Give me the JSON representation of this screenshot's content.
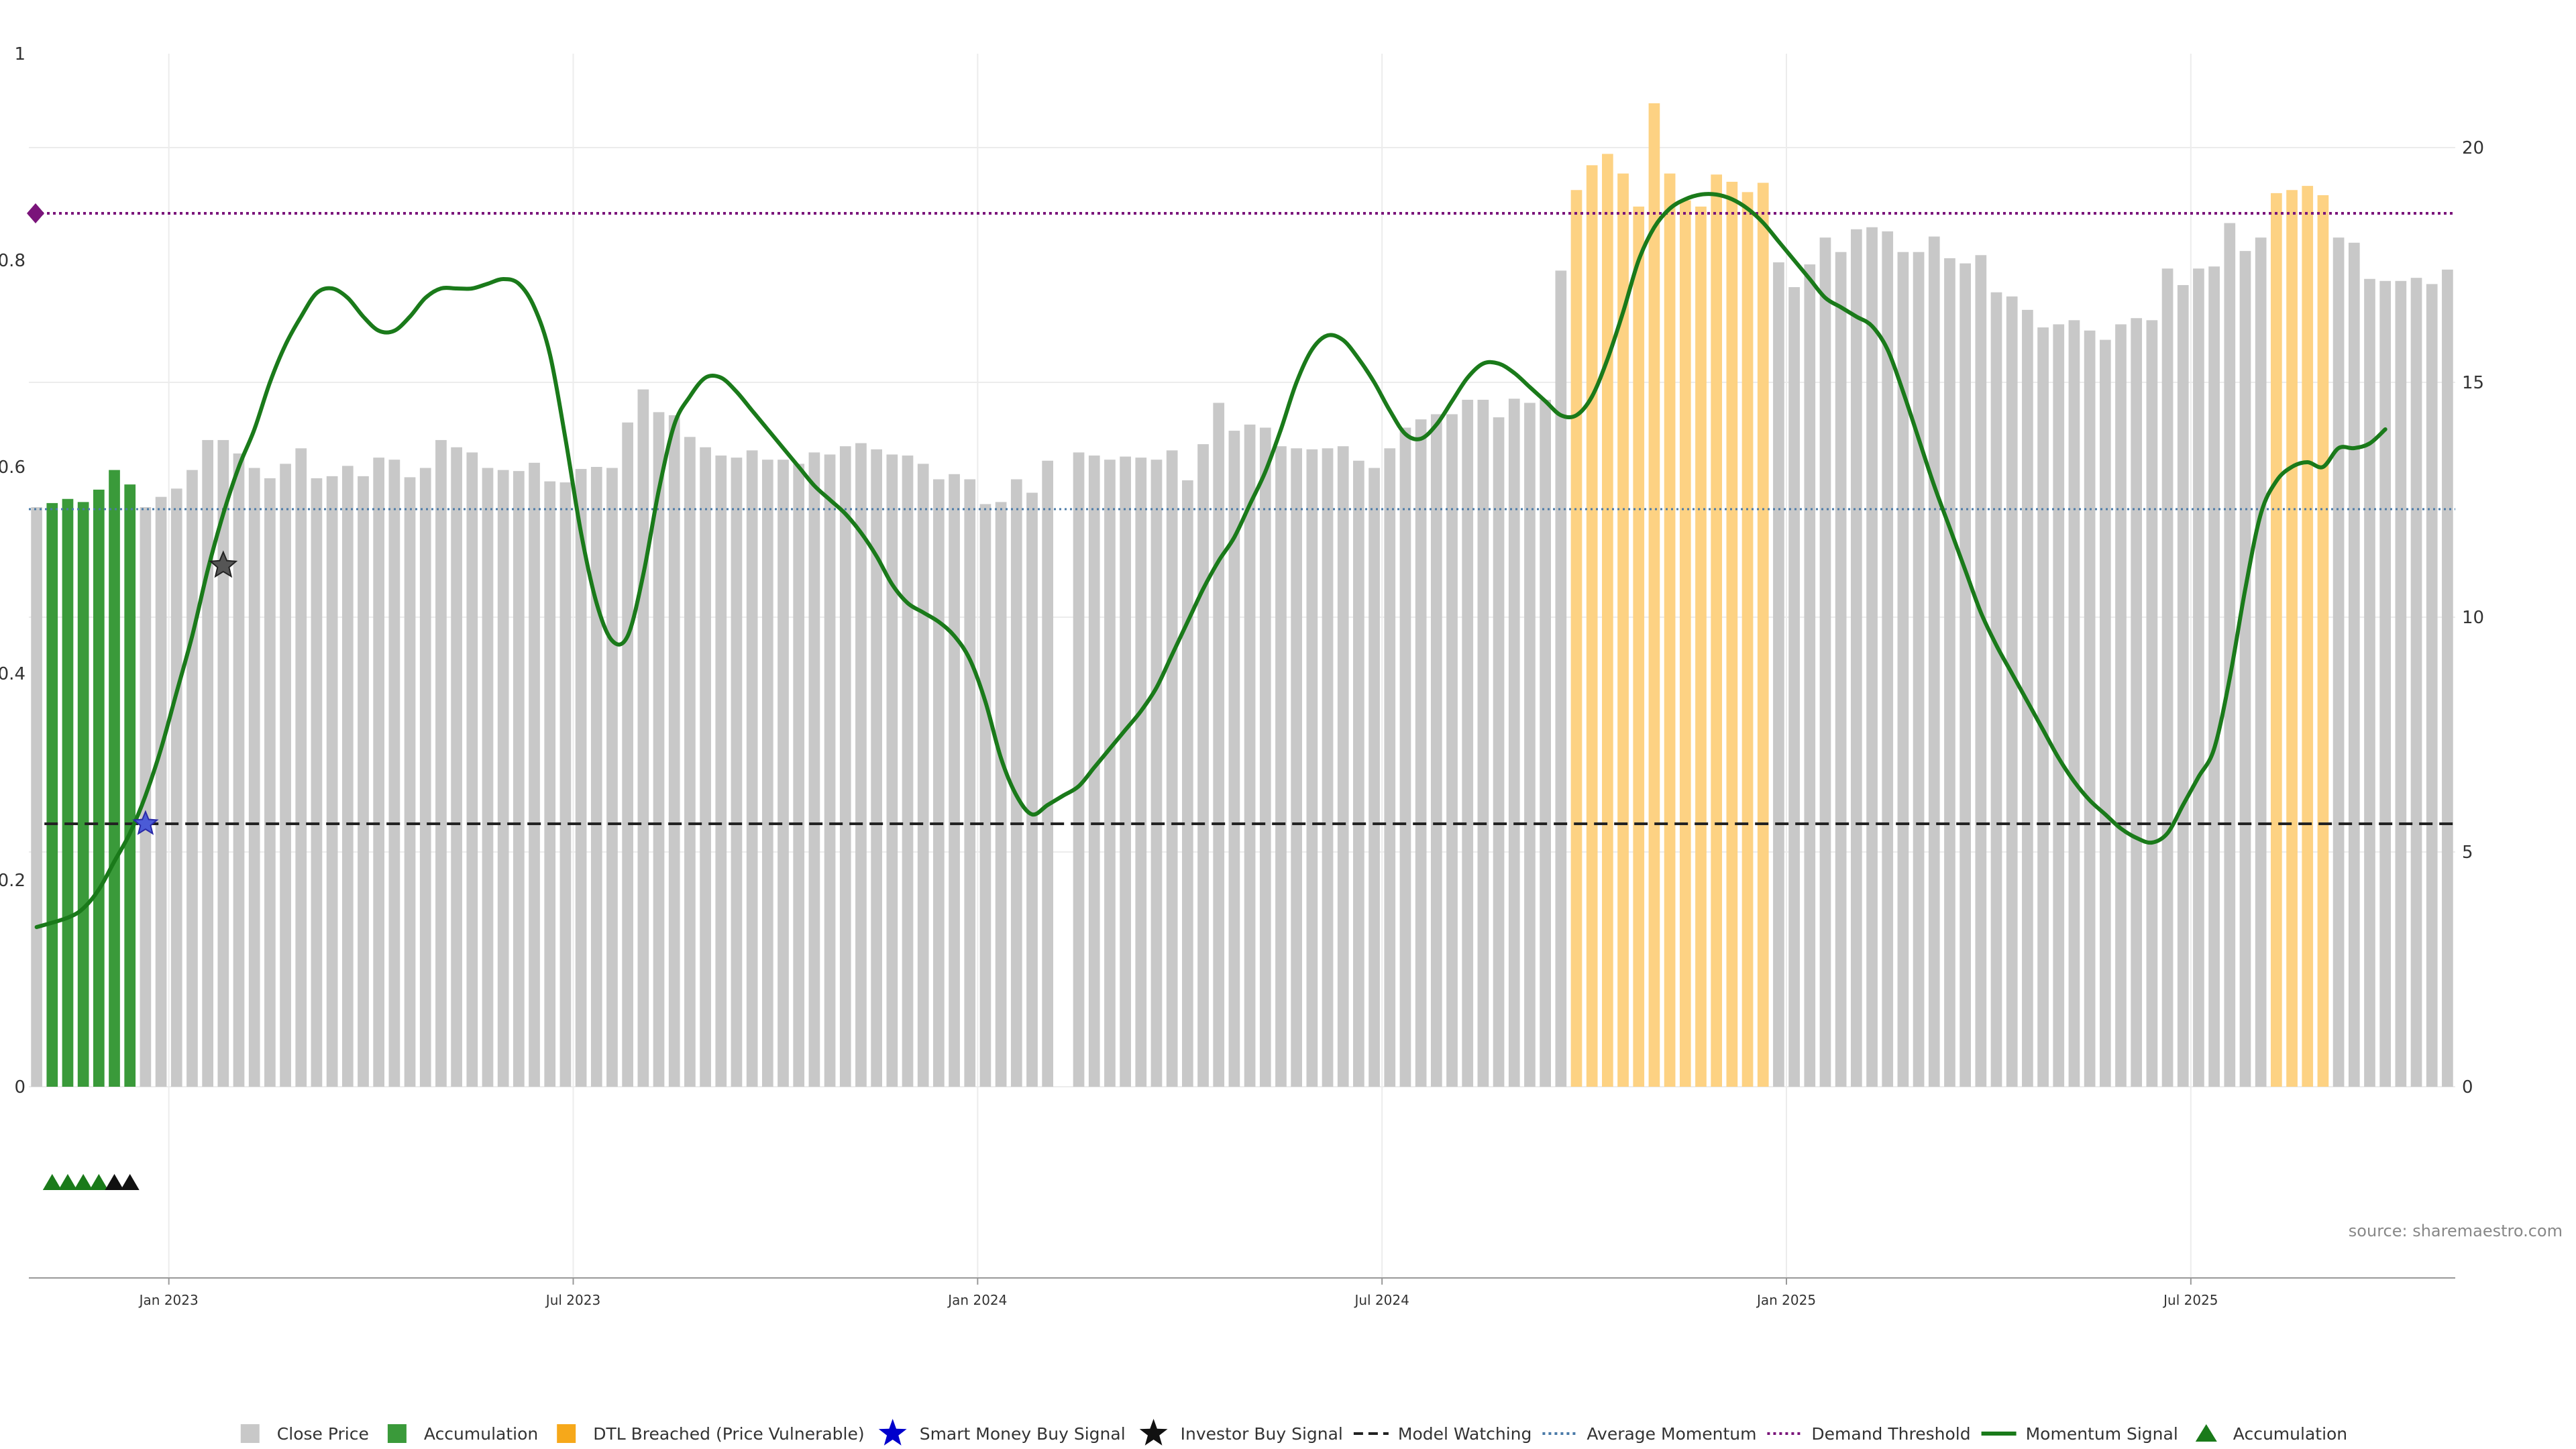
{
  "chart_data": {
    "type": "bar",
    "title": "",
    "source": "source: sharemaestro.com",
    "left_axis": {
      "ticks": [
        "0",
        "0.2",
        "0.4",
        "0.6",
        "0.8",
        "1"
      ],
      "ylim": [
        0,
        1
      ]
    },
    "right_axis": {
      "ticks": [
        "0",
        "5",
        "10",
        "15",
        "20"
      ],
      "ylim": [
        0,
        22
      ]
    },
    "x_axis": {
      "tick_labels": [
        "Jan 2023",
        "Jul 2023",
        "Jan 2024",
        "Jul 2024",
        "Jan 2025",
        "Jul 2025"
      ],
      "tick_weeks": [
        9,
        35,
        61,
        87,
        113,
        139
      ]
    },
    "week_range": [
      0,
      156
    ],
    "bars": {
      "unit_axis": "left",
      "values": [
        0.561,
        0.565,
        0.569,
        0.566,
        0.578,
        0.597,
        0.583,
        0.561,
        0.571,
        0.579,
        0.597,
        0.626,
        0.626,
        0.613,
        0.599,
        0.589,
        0.603,
        0.618,
        0.589,
        0.591,
        0.601,
        0.591,
        0.609,
        0.607,
        0.59,
        0.599,
        0.626,
        0.619,
        0.614,
        0.599,
        0.597,
        0.596,
        0.604,
        0.586,
        0.585,
        0.598,
        0.6,
        0.599,
        0.643,
        0.675,
        0.653,
        0.65,
        0.629,
        0.619,
        0.611,
        0.609,
        0.616,
        0.607,
        0.607,
        0.603,
        0.614,
        0.612,
        0.62,
        0.623,
        0.617,
        0.612,
        0.611,
        0.603,
        0.588,
        0.593,
        0.588,
        0.564,
        0.566,
        0.588,
        0.575,
        0.606,
        null,
        0.614,
        0.611,
        0.607,
        0.61,
        0.609,
        0.607,
        0.616,
        0.587,
        0.622,
        0.662,
        0.635,
        0.641,
        0.638,
        0.62,
        0.618,
        0.617,
        0.618,
        0.62,
        0.606,
        0.599,
        0.618,
        0.638,
        0.646,
        0.651,
        0.651,
        0.665,
        0.665,
        0.648,
        0.666,
        0.662,
        0.665,
        0.79,
        0.868,
        0.892,
        0.903,
        0.884,
        0.852,
        0.952,
        0.884,
        0.858,
        0.852,
        0.883,
        0.876,
        0.866,
        0.875,
        0.798,
        0.774,
        0.796,
        0.822,
        0.808,
        0.83,
        0.832,
        0.828,
        0.808,
        0.808,
        0.823,
        0.802,
        0.797,
        0.805,
        0.769,
        0.765,
        0.752,
        0.735,
        0.738,
        0.742,
        0.732,
        0.723,
        0.738,
        0.744,
        0.742,
        0.792,
        0.776,
        0.792,
        0.794,
        0.836,
        0.809,
        0.822,
        0.865,
        0.868,
        0.872,
        0.863,
        0.822,
        0.817,
        0.782,
        0.78,
        0.78,
        0.783,
        0.777,
        0.791
      ],
      "colors": {
        "gray": "#c8c8c8",
        "green": "#3a9a3a",
        "orange": "#fdd283"
      },
      "green_weeks": [
        1,
        6
      ],
      "orange_ranges": [
        [
          99,
          111
        ],
        [
          144,
          147
        ]
      ]
    },
    "momentum_signal": {
      "unit_axis": "right",
      "color": "#1a7a1a",
      "points": [
        [
          0,
          3.4
        ],
        [
          2,
          3.6
        ],
        [
          3,
          3.8
        ],
        [
          4,
          4.2
        ],
        [
          5,
          4.8
        ],
        [
          6,
          5.4
        ],
        [
          7,
          6.2
        ],
        [
          8,
          7.2
        ],
        [
          9,
          8.4
        ],
        [
          10,
          9.6
        ],
        [
          11,
          11.0
        ],
        [
          12,
          12.2
        ],
        [
          13,
          13.2
        ],
        [
          14,
          14.0
        ],
        [
          15,
          15.0
        ],
        [
          16,
          15.8
        ],
        [
          17,
          16.4
        ],
        [
          18,
          16.9
        ],
        [
          19,
          17.0
        ],
        [
          20,
          16.8
        ],
        [
          21,
          16.4
        ],
        [
          22,
          16.1
        ],
        [
          23,
          16.1
        ],
        [
          24,
          16.4
        ],
        [
          25,
          16.8
        ],
        [
          26,
          17.0
        ],
        [
          27,
          17.0
        ],
        [
          28,
          17.0
        ],
        [
          29,
          17.1
        ],
        [
          30,
          17.2
        ],
        [
          31,
          17.1
        ],
        [
          32,
          16.6
        ],
        [
          33,
          15.6
        ],
        [
          34,
          13.8
        ],
        [
          35,
          11.8
        ],
        [
          36,
          10.3
        ],
        [
          37,
          9.5
        ],
        [
          38,
          9.6
        ],
        [
          39,
          10.9
        ],
        [
          40,
          12.7
        ],
        [
          41,
          14.1
        ],
        [
          42,
          14.7
        ],
        [
          43,
          15.1
        ],
        [
          44,
          15.1
        ],
        [
          45,
          14.8
        ],
        [
          46,
          14.4
        ],
        [
          47,
          14.0
        ],
        [
          48,
          13.6
        ],
        [
          49,
          13.2
        ],
        [
          50,
          12.8
        ],
        [
          51,
          12.5
        ],
        [
          52,
          12.2
        ],
        [
          53,
          11.8
        ],
        [
          54,
          11.3
        ],
        [
          55,
          10.7
        ],
        [
          56,
          10.3
        ],
        [
          57,
          10.1
        ],
        [
          58,
          9.9
        ],
        [
          59,
          9.6
        ],
        [
          60,
          9.1
        ],
        [
          61,
          8.2
        ],
        [
          62,
          7.0
        ],
        [
          63,
          6.2
        ],
        [
          64,
          5.8
        ],
        [
          65,
          6.0
        ],
        [
          66,
          6.2
        ],
        [
          67,
          6.4
        ],
        [
          68,
          6.8
        ],
        [
          69,
          7.2
        ],
        [
          70,
          7.6
        ],
        [
          71,
          8.0
        ],
        [
          72,
          8.5
        ],
        [
          73,
          9.2
        ],
        [
          74,
          9.9
        ],
        [
          75,
          10.6
        ],
        [
          76,
          11.2
        ],
        [
          77,
          11.7
        ],
        [
          78,
          12.4
        ],
        [
          79,
          13.1
        ],
        [
          80,
          14.0
        ],
        [
          81,
          15.0
        ],
        [
          82,
          15.7
        ],
        [
          83,
          16.0
        ],
        [
          84,
          15.9
        ],
        [
          85,
          15.5
        ],
        [
          86,
          15.0
        ],
        [
          87,
          14.4
        ],
        [
          88,
          13.9
        ],
        [
          89,
          13.8
        ],
        [
          90,
          14.1
        ],
        [
          91,
          14.6
        ],
        [
          92,
          15.1
        ],
        [
          93,
          15.4
        ],
        [
          94,
          15.4
        ],
        [
          95,
          15.2
        ],
        [
          96,
          14.9
        ],
        [
          97,
          14.6
        ],
        [
          98,
          14.3
        ],
        [
          99,
          14.3
        ],
        [
          100,
          14.7
        ],
        [
          101,
          15.5
        ],
        [
          102,
          16.5
        ],
        [
          103,
          17.6
        ],
        [
          104,
          18.3
        ],
        [
          105,
          18.7
        ],
        [
          106,
          18.9
        ],
        [
          107,
          19.0
        ],
        [
          108,
          19.0
        ],
        [
          109,
          18.9
        ],
        [
          110,
          18.7
        ],
        [
          111,
          18.4
        ],
        [
          112,
          18.0
        ],
        [
          113,
          17.6
        ],
        [
          114,
          17.2
        ],
        [
          115,
          16.8
        ],
        [
          116,
          16.6
        ],
        [
          117,
          16.4
        ],
        [
          118,
          16.2
        ],
        [
          119,
          15.7
        ],
        [
          120,
          14.8
        ],
        [
          121,
          13.8
        ],
        [
          122,
          12.8
        ],
        [
          123,
          11.9
        ],
        [
          124,
          11.0
        ],
        [
          125,
          10.1
        ],
        [
          126,
          9.4
        ],
        [
          127,
          8.8
        ],
        [
          128,
          8.2
        ],
        [
          129,
          7.6
        ],
        [
          130,
          7.0
        ],
        [
          131,
          6.5
        ],
        [
          132,
          6.1
        ],
        [
          133,
          5.8
        ],
        [
          134,
          5.5
        ],
        [
          135,
          5.3
        ],
        [
          136,
          5.2
        ],
        [
          137,
          5.4
        ],
        [
          138,
          6.0
        ],
        [
          139,
          6.6
        ],
        [
          140,
          7.2
        ],
        [
          141,
          8.7
        ],
        [
          142,
          10.6
        ],
        [
          143,
          12.2
        ],
        [
          144,
          12.9
        ],
        [
          145,
          13.2
        ],
        [
          146,
          13.3
        ],
        [
          147,
          13.2
        ],
        [
          148,
          13.6
        ],
        [
          149,
          13.6
        ],
        [
          150,
          13.7
        ],
        [
          151,
          14.0
        ]
      ]
    },
    "model_watching": {
      "unit_axis": "right",
      "value": 5.6,
      "color": "#222222"
    },
    "average_momentum": {
      "unit_axis": "right",
      "value": 12.3,
      "color": "#4a7aa8"
    },
    "demand_threshold": {
      "unit_axis": "right",
      "value": 18.6,
      "color": "#7a147a"
    },
    "smart_money_signals": [
      {
        "week": 7,
        "value": 5.6
      }
    ],
    "investor_signals": [
      {
        "week": 12,
        "value": 11.1
      }
    ],
    "accumulation_markers": [
      {
        "week": 1,
        "color": "#1a7a1a"
      },
      {
        "week": 2,
        "color": "#1a7a1a"
      },
      {
        "week": 3,
        "color": "#1a7a1a"
      },
      {
        "week": 4,
        "color": "#1a7a1a"
      },
      {
        "week": 5,
        "color": "#111111"
      },
      {
        "week": 6,
        "color": "#111111"
      }
    ],
    "legend": [
      {
        "label": "Close Price",
        "symbol": "square",
        "color": "#c8c8c8"
      },
      {
        "label": "Accumulation",
        "symbol": "square",
        "color": "#3a9a3a"
      },
      {
        "label": "DTL Breached (Price Vulnerable)",
        "symbol": "square",
        "color": "#f6a81a"
      },
      {
        "label": "Smart Money Buy Signal",
        "symbol": "star",
        "color": "#0000cc"
      },
      {
        "label": "Investor Buy Signal",
        "symbol": "star",
        "color": "#111111"
      },
      {
        "label": "Model Watching",
        "symbol": "dash",
        "color": "#222222"
      },
      {
        "label": "Average Momentum",
        "symbol": "dot",
        "color": "#4a7aa8"
      },
      {
        "label": "Demand Threshold",
        "symbol": "dot",
        "color": "#7a147a"
      },
      {
        "label": "Momentum Signal",
        "symbol": "line",
        "color": "#1a7a1a"
      },
      {
        "label": "Accumulation",
        "symbol": "triangle",
        "color": "#1a7a1a"
      }
    ]
  }
}
